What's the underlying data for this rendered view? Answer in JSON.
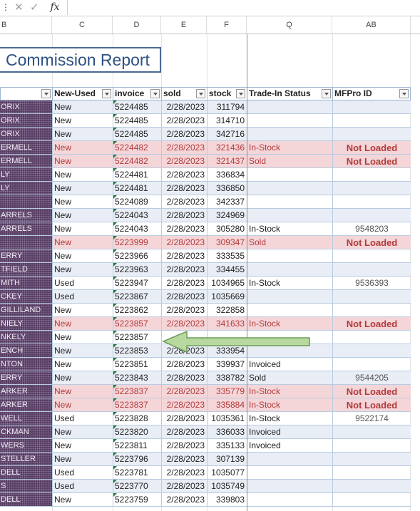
{
  "formula_bar": {
    "fx_label": "fx",
    "cancel_icon": "close-icon",
    "enter_icon": "check-icon"
  },
  "col_letters": [
    "B",
    "C",
    "D",
    "E",
    "F",
    "Q",
    "AB"
  ],
  "title": "Commission Report",
  "headers": [
    "New-Used",
    "invoice",
    "sold",
    "stock",
    "Trade-In Status",
    "MFPro ID"
  ],
  "rows": [
    {
      "b": "ORIX",
      "nu": "New",
      "inv": "5224485",
      "sold": "2/28/2023",
      "stock": "311794",
      "status": "",
      "mf": "",
      "band": true,
      "nl": false
    },
    {
      "b": "ORIX",
      "nu": "New",
      "inv": "5224485",
      "sold": "2/28/2023",
      "stock": "314710",
      "status": "",
      "mf": "",
      "band": false,
      "nl": false
    },
    {
      "b": "ORIX",
      "nu": "New",
      "inv": "5224485",
      "sold": "2/28/2023",
      "stock": "342716",
      "status": "",
      "mf": "",
      "band": true,
      "nl": false
    },
    {
      "b": "ERMELL",
      "nu": "New",
      "inv": "5224482",
      "sold": "2/28/2023",
      "stock": "321436",
      "status": "In-Stock",
      "mf": "Not Loaded",
      "band": false,
      "nl": true
    },
    {
      "b": "ERMELL",
      "nu": "New",
      "inv": "5224482",
      "sold": "2/28/2023",
      "stock": "321437",
      "status": "Sold",
      "mf": "Not Loaded",
      "band": true,
      "nl": true
    },
    {
      "b": "LY",
      "nu": "New",
      "inv": "5224481",
      "sold": "2/28/2023",
      "stock": "336834",
      "status": "",
      "mf": "",
      "band": false,
      "nl": false
    },
    {
      "b": "LY",
      "nu": "New",
      "inv": "5224481",
      "sold": "2/28/2023",
      "stock": "336850",
      "status": "",
      "mf": "",
      "band": true,
      "nl": false
    },
    {
      "b": "",
      "nu": "New",
      "inv": "5224089",
      "sold": "2/28/2023",
      "stock": "342337",
      "status": "",
      "mf": "",
      "band": false,
      "nl": false
    },
    {
      "b": "ARRELS",
      "nu": "New",
      "inv": "5224043",
      "sold": "2/28/2023",
      "stock": "324969",
      "status": "",
      "mf": "",
      "band": true,
      "nl": false
    },
    {
      "b": "ARRELS",
      "nu": "New",
      "inv": "5224043",
      "sold": "2/28/2023",
      "stock": "305280",
      "status": "In-Stock",
      "mf": "9548203",
      "band": false,
      "nl": false
    },
    {
      "b": "",
      "nu": "New",
      "inv": "5223999",
      "sold": "2/28/2023",
      "stock": "309347",
      "status": "Sold",
      "mf": "Not Loaded",
      "band": true,
      "nl": true
    },
    {
      "b": "ERRY",
      "nu": "New",
      "inv": "5223966",
      "sold": "2/28/2023",
      "stock": "333535",
      "status": "",
      "mf": "",
      "band": false,
      "nl": false
    },
    {
      "b": "TFIELD",
      "nu": "New",
      "inv": "5223963",
      "sold": "2/28/2023",
      "stock": "334455",
      "status": "",
      "mf": "",
      "band": true,
      "nl": false
    },
    {
      "b": "MITH",
      "nu": "Used",
      "inv": "5223947",
      "sold": "2/28/2023",
      "stock": "1034965",
      "status": "In-Stock",
      "mf": "9536393",
      "band": false,
      "nl": false
    },
    {
      "b": "CKEY",
      "nu": "Used",
      "inv": "5223867",
      "sold": "2/28/2023",
      "stock": "1035669",
      "status": "",
      "mf": "",
      "band": true,
      "nl": false
    },
    {
      "b": "GILLILAND",
      "nu": "New",
      "inv": "5223862",
      "sold": "2/28/2023",
      "stock": "322858",
      "status": "",
      "mf": "",
      "band": false,
      "nl": false
    },
    {
      "b": "NIELY",
      "nu": "New",
      "inv": "5223857",
      "sold": "2/28/2023",
      "stock": "341633",
      "status": "In-Stock",
      "mf": "Not Loaded",
      "band": true,
      "nl": true
    },
    {
      "b": "NKELY",
      "nu": "New",
      "inv": "5223857",
      "sold": "",
      "stock": "",
      "status": "",
      "mf": "",
      "band": false,
      "nl": false
    },
    {
      "b": "ENCH",
      "nu": "New",
      "inv": "5223853",
      "sold": "2/28/2023",
      "stock": "333954",
      "status": "",
      "mf": "",
      "band": true,
      "nl": false
    },
    {
      "b": "NTON",
      "nu": "New",
      "inv": "5223851",
      "sold": "2/28/2023",
      "stock": "339937",
      "status": "Invoiced",
      "mf": "",
      "band": false,
      "nl": false
    },
    {
      "b": "ERRY",
      "nu": "New",
      "inv": "5223843",
      "sold": "2/28/2023",
      "stock": "338782",
      "status": "Sold",
      "mf": "9544205",
      "band": true,
      "nl": false
    },
    {
      "b": "ARKER",
      "nu": "New",
      "inv": "5223837",
      "sold": "2/28/2023",
      "stock": "335779",
      "status": "In-Stock",
      "mf": "Not Loaded",
      "band": false,
      "nl": true
    },
    {
      "b": "ARKER",
      "nu": "New",
      "inv": "5223837",
      "sold": "2/28/2023",
      "stock": "335884",
      "status": "In-Stock",
      "mf": "Not Loaded",
      "band": true,
      "nl": true
    },
    {
      "b": "WELL",
      "nu": "Used",
      "inv": "5223828",
      "sold": "2/28/2023",
      "stock": "1035361",
      "status": "In-Stock",
      "mf": "9522174",
      "band": false,
      "nl": false
    },
    {
      "b": "CKMAN",
      "nu": "New",
      "inv": "5223820",
      "sold": "2/28/2023",
      "stock": "336033",
      "status": "Invoiced",
      "mf": "",
      "band": true,
      "nl": false
    },
    {
      "b": "WERS",
      "nu": "New",
      "inv": "5223811",
      "sold": "2/28/2023",
      "stock": "335133",
      "status": "Invoiced",
      "mf": "",
      "band": false,
      "nl": false
    },
    {
      "b": "STELLER",
      "nu": "New",
      "inv": "5223796",
      "sold": "2/28/2023",
      "stock": "307139",
      "status": "",
      "mf": "",
      "band": true,
      "nl": false
    },
    {
      "b": "DELL",
      "nu": "Used",
      "inv": "5223781",
      "sold": "2/28/2023",
      "stock": "1035077",
      "status": "",
      "mf": "",
      "band": false,
      "nl": false
    },
    {
      "b": "S",
      "nu": "Used",
      "inv": "5223770",
      "sold": "2/28/2023",
      "stock": "1035749",
      "status": "",
      "mf": "",
      "band": true,
      "nl": false
    },
    {
      "b": "DELL",
      "nu": "New",
      "inv": "5223759",
      "sold": "2/28/2023",
      "stock": "339803",
      "status": "",
      "mf": "",
      "band": false,
      "nl": false
    }
  ],
  "colors": {
    "title": "#2f5182",
    "highlight": "#f4d6d9",
    "band": "#e9eef6",
    "arrow": "#a9cf8f"
  }
}
